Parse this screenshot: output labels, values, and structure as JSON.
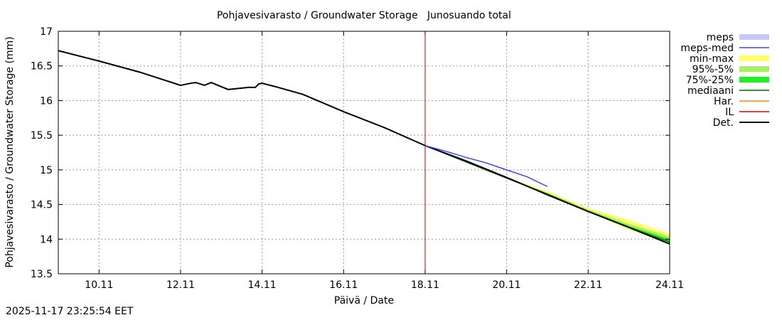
{
  "chart_data": {
    "type": "line",
    "title": "Pohjavesivarasto / Groundwater Storage   Junosuando total",
    "xlabel": "Päivä / Date",
    "ylabel": "Pohjavesivarasto / Groundwater Storage (mm)",
    "xlim": [
      "2025-11-09",
      "2025-11-24"
    ],
    "ylim": [
      13.5,
      17
    ],
    "grid": true,
    "legend_position": "right",
    "x_ticks": [
      {
        "date": "2025-11-10",
        "label": "10.11"
      },
      {
        "date": "2025-11-12",
        "label": "12.11"
      },
      {
        "date": "2025-11-14",
        "label": "14.11"
      },
      {
        "date": "2025-11-16",
        "label": "16.11"
      },
      {
        "date": "2025-11-18",
        "label": "18.11"
      },
      {
        "date": "2025-11-20",
        "label": "20.11"
      },
      {
        "date": "2025-11-22",
        "label": "22.11"
      },
      {
        "date": "2025-11-24",
        "label": "24.11"
      }
    ],
    "y_ticks": [
      {
        "value": 13.5,
        "label": "13.5"
      },
      {
        "value": 14,
        "label": "14"
      },
      {
        "value": 14.5,
        "label": "14.5"
      },
      {
        "value": 15,
        "label": "15"
      },
      {
        "value": 15.5,
        "label": "15.5"
      },
      {
        "value": 16,
        "label": "16"
      },
      {
        "value": 16.5,
        "label": "16.5"
      },
      {
        "value": 17,
        "label": "17"
      }
    ],
    "forecast_start_line": {
      "date": "2025-11-18",
      "color": "#cc0000"
    },
    "bands": [
      {
        "name": "min-max",
        "color": "#ffff66",
        "x": [
          "2025-11-18",
          "2025-11-20",
          "2025-11-21",
          "2025-11-22",
          "2025-11-23",
          "2025-11-24"
        ],
        "low": [
          15.35,
          14.88,
          14.64,
          14.39,
          14.14,
          13.93
        ],
        "high": [
          15.35,
          14.9,
          14.69,
          14.45,
          14.28,
          14.08
        ]
      },
      {
        "name": "95%-5%",
        "color": "#aaee66",
        "x": [
          "2025-11-18",
          "2025-11-20",
          "2025-11-21",
          "2025-11-22",
          "2025-11-23",
          "2025-11-24"
        ],
        "low": [
          15.35,
          14.88,
          14.64,
          14.39,
          14.15,
          13.94
        ],
        "high": [
          15.35,
          14.89,
          14.67,
          14.43,
          14.22,
          14.04
        ]
      },
      {
        "name": "75%-25%",
        "color": "#22ee22",
        "x": [
          "2025-11-18",
          "2025-11-20",
          "2025-11-21",
          "2025-11-22",
          "2025-11-23",
          "2025-11-24"
        ],
        "low": [
          15.35,
          14.88,
          14.65,
          14.4,
          14.16,
          13.95
        ],
        "high": [
          15.35,
          14.89,
          14.66,
          14.41,
          14.19,
          14.0
        ]
      }
    ],
    "series": [
      {
        "name": "Det.",
        "color": "#000000",
        "x": [
          "2025-11-09 00:00",
          "2025-11-10 00:00",
          "2025-11-11 00:00",
          "2025-11-12 00:00",
          "2025-11-12 06:00",
          "2025-11-12 09:00",
          "2025-11-12 14:00",
          "2025-11-12 18:00",
          "2025-11-13 00:00",
          "2025-11-13 04:00",
          "2025-11-13 12:00",
          "2025-11-13 16:00",
          "2025-11-13 20:00",
          "2025-11-13 22:00",
          "2025-11-14 00:00",
          "2025-11-14 08:00",
          "2025-11-15 00:00",
          "2025-11-16 00:00",
          "2025-11-17 00:00",
          "2025-11-18 00:00",
          "2025-11-19 00:00",
          "2025-11-20 00:00",
          "2025-11-21 00:00",
          "2025-11-22 00:00",
          "2025-11-23 00:00",
          "2025-11-24 00:00"
        ],
        "y": [
          16.72,
          16.57,
          16.41,
          16.22,
          16.25,
          16.26,
          16.22,
          16.26,
          16.2,
          16.16,
          16.18,
          16.19,
          16.19,
          16.24,
          16.25,
          16.2,
          16.09,
          15.84,
          15.61,
          15.35,
          15.13,
          14.89,
          14.64,
          14.4,
          14.17,
          13.93
        ]
      },
      {
        "name": "meps-med",
        "color": "#4444ee",
        "x": [
          "2025-11-18 00:00",
          "2025-11-18 12:00",
          "2025-11-19 00:00",
          "2025-11-19 12:00",
          "2025-11-20 00:00",
          "2025-11-20 12:00",
          "2025-11-21 00:00"
        ],
        "y": [
          15.35,
          15.27,
          15.18,
          15.1,
          15.0,
          14.9,
          14.76
        ]
      },
      {
        "name": "mediaani",
        "color": "#006600",
        "x": [
          "2025-11-18 00:00",
          "2025-11-20 00:00",
          "2025-11-21 00:00",
          "2025-11-22 00:00",
          "2025-11-23 00:00",
          "2025-11-24 00:00"
        ],
        "y": [
          15.35,
          14.88,
          14.65,
          14.4,
          14.17,
          13.96
        ]
      }
    ],
    "legend": [
      {
        "label": "meps",
        "style": "band",
        "color": "#c8c8f8"
      },
      {
        "label": "meps-med",
        "style": "line",
        "color": "#4444ee"
      },
      {
        "label": "min-max",
        "style": "band",
        "color": "#ffff66"
      },
      {
        "label": "95%-5%",
        "style": "band",
        "color": "#aaee66"
      },
      {
        "label": "75%-25%",
        "style": "band",
        "color": "#22ee22"
      },
      {
        "label": "mediaani",
        "style": "line",
        "color": "#006600"
      },
      {
        "label": "Har.",
        "style": "line",
        "color": "#ff8800"
      },
      {
        "label": "IL",
        "style": "line",
        "color": "#dd0000"
      },
      {
        "label": "Det.",
        "style": "line",
        "color": "#000000"
      }
    ]
  },
  "footer": {
    "timestamp": "2025-11-17 23:25:54 EET"
  }
}
